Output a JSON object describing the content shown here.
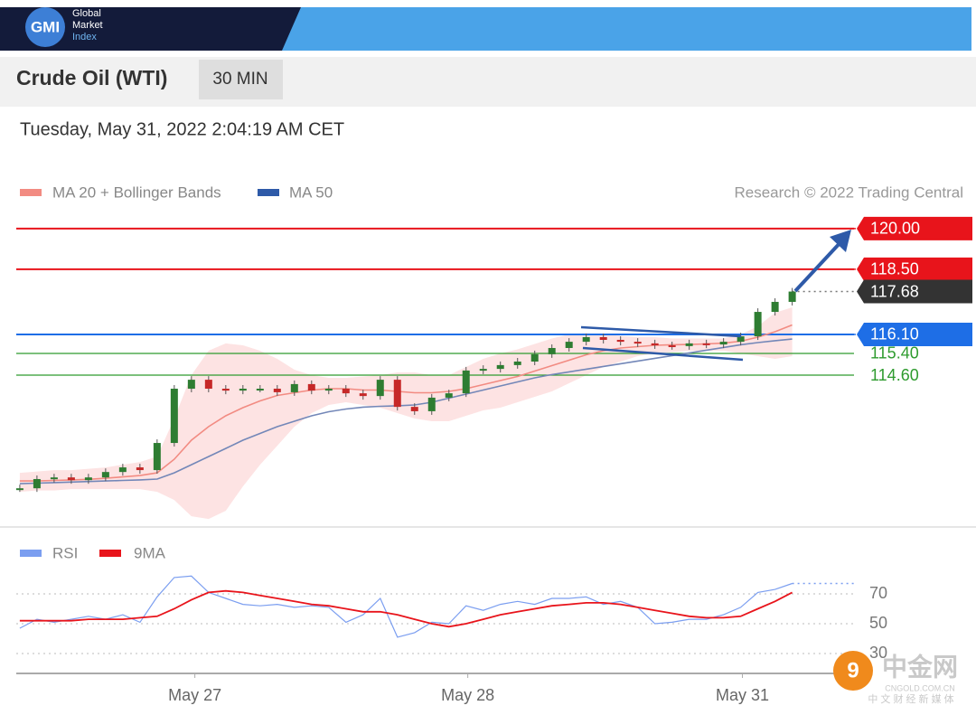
{
  "header": {
    "logo": "GMI",
    "logo_lines": [
      "Global",
      "Market",
      "Index"
    ],
    "title": "Crude Oil (WTI)",
    "timeframe": "30 MIN",
    "timestamp": "Tuesday, May 31, 2022 2:04:19 AM CET"
  },
  "watermark": {
    "brand": "中金网",
    "site": "CNGOLD.COM.CN",
    "tagline": "中 文 财 经 新 媒 体"
  },
  "chart_data": [
    {
      "type": "candlestick",
      "source": "Research © 2022 Trading Central",
      "x": [
        0,
        1,
        2,
        3,
        4,
        5,
        6,
        7,
        8,
        9,
        10,
        11,
        12,
        13,
        14,
        15,
        16,
        17,
        18,
        19,
        20,
        21,
        22,
        23,
        24,
        25,
        26,
        27,
        28,
        29,
        30,
        31,
        32,
        33,
        34,
        35,
        36,
        37,
        38,
        39,
        40,
        41,
        42,
        43,
        44,
        45
      ],
      "values": [
        110.43,
        110.77,
        110.83,
        110.73,
        110.83,
        111.03,
        111.2,
        111.1,
        112.1,
        114.1,
        114.43,
        114.1,
        114.03,
        114.1,
        114.1,
        113.97,
        114.27,
        114.03,
        114.1,
        113.93,
        113.83,
        114.43,
        113.43,
        113.27,
        113.77,
        113.93,
        114.77,
        114.83,
        114.97,
        115.1,
        115.37,
        115.6,
        115.83,
        116.0,
        115.9,
        115.83,
        115.77,
        115.7,
        115.67,
        115.77,
        115.73,
        115.83,
        116.03,
        116.93,
        117.3,
        117.68
      ],
      "up_color": "#2e7d32",
      "down_color": "#c62828",
      "series": [
        {
          "name": "MA 20 + Bollinger Bands",
          "color": "#f28b82",
          "band_color": "#fde3e3",
          "values": [
            110.7,
            110.7,
            110.72,
            110.74,
            110.76,
            110.8,
            110.85,
            110.9,
            111.0,
            111.5,
            112.2,
            112.7,
            113.1,
            113.4,
            113.65,
            113.85,
            113.95,
            114.05,
            114.1,
            114.1,
            114.05,
            114.05,
            114.0,
            113.95,
            113.95,
            114.0,
            114.1,
            114.25,
            114.4,
            114.55,
            114.75,
            114.95,
            115.15,
            115.35,
            115.5,
            115.6,
            115.65,
            115.7,
            115.72,
            115.73,
            115.75,
            115.78,
            115.85,
            116.0,
            116.2,
            116.45
          ],
          "band": {
            "upper": [
              111.0,
              111.05,
              111.1,
              111.1,
              111.15,
              111.2,
              111.3,
              111.4,
              111.6,
              113.0,
              114.6,
              115.5,
              115.77,
              115.7,
              115.5,
              115.2,
              114.8,
              114.6,
              114.5,
              114.5,
              114.55,
              114.6,
              114.7,
              114.7,
              114.6,
              114.6,
              114.9,
              115.2,
              115.4,
              115.55,
              115.75,
              115.95,
              116.1,
              116.15,
              116.1,
              116.05,
              116.0,
              116.0,
              115.95,
              115.95,
              115.95,
              115.95,
              116.1,
              116.4,
              116.9,
              117.1
            ],
            "lower": [
              110.3,
              110.35,
              110.35,
              110.4,
              110.4,
              110.4,
              110.4,
              110.4,
              110.3,
              110.0,
              109.4,
              109.3,
              109.6,
              110.5,
              111.3,
              112.0,
              112.7,
              113.2,
              113.5,
              113.6,
              113.5,
              113.4,
              113.2,
              113.0,
              112.9,
              112.9,
              113.1,
              113.3,
              113.4,
              113.6,
              113.8,
              114.0,
              114.3,
              114.6,
              114.9,
              115.1,
              115.3,
              115.4,
              115.45,
              115.5,
              115.5,
              115.5,
              115.4,
              115.3,
              115.2,
              115.3
            ]
          }
        },
        {
          "name": "MA 50",
          "color": "#7387b8",
          "legend_color": "#2e5aa8",
          "values": [
            110.6,
            110.62,
            110.64,
            110.66,
            110.68,
            110.7,
            110.72,
            110.74,
            110.77,
            111.0,
            111.3,
            111.6,
            111.9,
            112.2,
            112.45,
            112.7,
            112.9,
            113.1,
            113.25,
            113.35,
            113.42,
            113.45,
            113.47,
            113.5,
            113.6,
            113.75,
            113.9,
            114.05,
            114.2,
            114.35,
            114.5,
            114.62,
            114.72,
            114.82,
            114.92,
            115.02,
            115.12,
            115.22,
            115.32,
            115.42,
            115.52,
            115.62,
            115.72,
            115.8,
            115.87,
            115.93
          ]
        }
      ],
      "levels": [
        {
          "value": 120,
          "label": "120.00",
          "color": "#e8141b",
          "style": "box"
        },
        {
          "value": 118.5,
          "label": "118.50",
          "color": "#e8141b",
          "style": "box"
        },
        {
          "value": 117.68,
          "label": "117.68",
          "color": "#333333",
          "style": "last"
        },
        {
          "value": 116.1,
          "label": "116.10",
          "color": "#1e6ee6",
          "style": "box"
        },
        {
          "value": 115.4,
          "label": "115.40",
          "color": "#2e9b2e",
          "style": "text"
        },
        {
          "value": 114.6,
          "label": "114.60",
          "color": "#2e9b2e",
          "style": "text"
        }
      ],
      "xlim": [
        -0.1,
        48.6
      ],
      "ylim": [
        109.27,
        120.43
      ]
    },
    {
      "type": "line",
      "x": [
        0,
        1,
        2,
        3,
        4,
        5,
        6,
        7,
        8,
        9,
        10,
        11,
        12,
        13,
        14,
        15,
        16,
        17,
        18,
        19,
        20,
        21,
        22,
        23,
        24,
        25,
        26,
        27,
        28,
        29,
        30,
        31,
        32,
        33,
        34,
        35,
        36,
        37,
        38,
        39,
        40,
        41,
        42,
        43,
        44,
        45
      ],
      "series": [
        {
          "name": "RSI",
          "color": "#7b9ef0",
          "values": [
            47,
            53,
            51,
            53,
            55,
            53,
            56,
            51,
            68,
            81,
            82,
            71,
            67,
            63,
            62,
            63,
            61,
            62,
            61,
            51,
            56,
            67,
            41,
            44,
            51,
            50,
            62,
            59,
            63,
            65,
            63,
            67,
            67,
            68,
            63,
            65,
            61,
            50,
            51,
            53,
            53,
            56,
            61,
            71,
            73,
            77
          ]
        },
        {
          "name": "9MA",
          "color": "#e8141b",
          "values": [
            52,
            52,
            52,
            52,
            53,
            53,
            53,
            54,
            55,
            60,
            66,
            71,
            72,
            71,
            69,
            67,
            65,
            63,
            62,
            60,
            58,
            58,
            56,
            53,
            50,
            48,
            50,
            53,
            56,
            58,
            60,
            62,
            63,
            64,
            64,
            63,
            61,
            59,
            57,
            55,
            54,
            54,
            55,
            60,
            65,
            71
          ]
        }
      ],
      "xlim": [
        -0.1,
        48.6
      ],
      "ylim": [
        19.7,
        86.4
      ],
      "yticks": [
        30,
        50,
        70
      ],
      "xticks": [
        {
          "value": 10.2,
          "label": "May 27"
        },
        {
          "value": 26.1,
          "label": "May 28"
        },
        {
          "value": 42.1,
          "label": "May 31"
        }
      ]
    }
  ]
}
